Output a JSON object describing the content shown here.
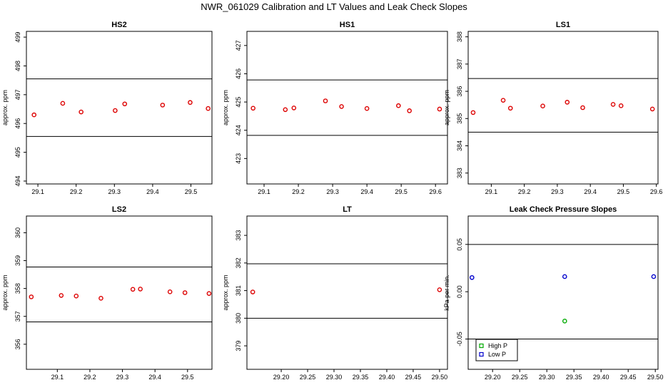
{
  "figure": {
    "title": "NWR_061029  Calibration and LT Values and Leak Check Slopes"
  },
  "chart_data": [
    {
      "id": "hs2",
      "type": "scatter",
      "title": "HS2",
      "ylabel": "approx. ppm",
      "xlim": [
        29.07,
        29.555
      ],
      "ylim": [
        493.9,
        499.2
      ],
      "xticks": [
        29.1,
        29.2,
        29.3,
        29.4,
        29.5
      ],
      "xtick_labels": [
        "29.1",
        "29.2",
        "29.3",
        "29.4",
        "29.5"
      ],
      "yticks": [
        494,
        495,
        496,
        497,
        498,
        499
      ],
      "ytick_labels": [
        "494",
        "495",
        "496",
        "497",
        "498",
        "499"
      ],
      "hlines": [
        495.55,
        497.55
      ],
      "series": [
        {
          "color": "#dd0000",
          "x": [
            29.09,
            29.165,
            29.213,
            29.302,
            29.327,
            29.426,
            29.498,
            29.545
          ],
          "y": [
            496.3,
            496.7,
            496.4,
            496.45,
            496.68,
            496.64,
            496.73,
            496.52
          ]
        }
      ]
    },
    {
      "id": "hs1",
      "type": "scatter",
      "title": "HS1",
      "ylabel": "approx. ppm",
      "xlim": [
        29.05,
        29.635
      ],
      "ylim": [
        422.1,
        427.5
      ],
      "xticks": [
        29.1,
        29.2,
        29.3,
        29.4,
        29.5,
        29.6
      ],
      "xtick_labels": [
        "29.1",
        "29.2",
        "29.3",
        "29.4",
        "29.5",
        "29.6"
      ],
      "yticks": [
        423,
        424,
        425,
        426,
        427
      ],
      "ytick_labels": [
        "423",
        "424",
        "425",
        "426",
        "427"
      ],
      "hlines": [
        423.82,
        425.78
      ],
      "series": [
        {
          "color": "#dd0000",
          "x": [
            29.068,
            29.162,
            29.187,
            29.279,
            29.326,
            29.4,
            29.492,
            29.524,
            29.612
          ],
          "y": [
            424.78,
            424.73,
            424.79,
            425.04,
            424.84,
            424.77,
            424.87,
            424.69,
            424.75
          ]
        }
      ]
    },
    {
      "id": "ls1",
      "type": "scatter",
      "title": "LS1",
      "ylabel": "approx. ppm",
      "xlim": [
        29.03,
        29.605
      ],
      "ylim": [
        382.6,
        388.2
      ],
      "xticks": [
        29.1,
        29.2,
        29.3,
        29.4,
        29.5,
        29.6
      ],
      "xtick_labels": [
        "29.1",
        "29.2",
        "29.3",
        "29.4",
        "29.5",
        "29.6"
      ],
      "yticks": [
        383,
        384,
        385,
        386,
        387,
        388
      ],
      "ytick_labels": [
        "383",
        "384",
        "385",
        "386",
        "387",
        "388"
      ],
      "hlines": [
        384.5,
        386.47
      ],
      "series": [
        {
          "color": "#dd0000",
          "x": [
            29.045,
            29.136,
            29.158,
            29.256,
            29.33,
            29.377,
            29.469,
            29.493,
            29.588
          ],
          "y": [
            385.22,
            385.67,
            385.38,
            385.46,
            385.6,
            385.4,
            385.52,
            385.47,
            385.35
          ]
        }
      ]
    },
    {
      "id": "ls2",
      "type": "scatter",
      "title": "LS2",
      "ylabel": "approx. ppm",
      "xlim": [
        29.005,
        29.575
      ],
      "ylim": [
        355.1,
        360.6
      ],
      "xticks": [
        29.1,
        29.2,
        29.3,
        29.4,
        29.5
      ],
      "xtick_labels": [
        "29.1",
        "29.2",
        "29.3",
        "29.4",
        "29.5"
      ],
      "yticks": [
        356,
        357,
        358,
        359,
        360
      ],
      "ytick_labels": [
        "356",
        "357",
        "358",
        "359",
        "360"
      ],
      "hlines": [
        356.8,
        358.77
      ],
      "series": [
        {
          "color": "#dd0000",
          "x": [
            29.02,
            29.112,
            29.158,
            29.234,
            29.332,
            29.355,
            29.446,
            29.492,
            29.566
          ],
          "y": [
            357.7,
            357.75,
            357.73,
            357.65,
            357.97,
            357.98,
            357.88,
            357.85,
            357.82
          ]
        }
      ]
    },
    {
      "id": "lt",
      "type": "scatter",
      "title": "LT",
      "ylabel": "approx. ppm",
      "xlim": [
        29.135,
        29.515
      ],
      "ylim": [
        378.15,
        383.7
      ],
      "xticks": [
        29.2,
        29.25,
        29.3,
        29.35,
        29.4,
        29.45,
        29.5
      ],
      "xtick_labels": [
        "29.20",
        "29.25",
        "29.30",
        "29.35",
        "29.40",
        "29.45",
        "29.50"
      ],
      "yticks": [
        379,
        380,
        381,
        382,
        383
      ],
      "ytick_labels": [
        "379",
        "380",
        "381",
        "382",
        "383"
      ],
      "hlines": [
        380.0,
        381.97
      ],
      "series": [
        {
          "color": "#dd0000",
          "x": [
            29.146,
            29.5
          ],
          "y": [
            380.95,
            381.03
          ]
        }
      ]
    },
    {
      "id": "leak",
      "type": "scatter",
      "title": "Leak Check Pressure Slopes",
      "ylabel": "kPa per min.",
      "xlim": [
        29.155,
        29.505
      ],
      "ylim": [
        -0.082,
        0.08
      ],
      "xticks": [
        29.2,
        29.25,
        29.3,
        29.35,
        29.4,
        29.45,
        29.5
      ],
      "xtick_labels": [
        "29.20",
        "29.25",
        "29.30",
        "29.35",
        "29.40",
        "29.45",
        "29.50"
      ],
      "yticks": [
        -0.05,
        0.0,
        0.05
      ],
      "ytick_labels": [
        "-0.05",
        "0.00",
        "0.05"
      ],
      "hlines": [
        -0.05,
        0.05
      ],
      "legend": {
        "placement": "bottom-left"
      },
      "series": [
        {
          "name": "High P",
          "color": "#00aa00",
          "x": [
            29.333
          ],
          "y": [
            -0.031
          ]
        },
        {
          "name": "Low P",
          "color": "#0000cc",
          "x": [
            29.162,
            29.333,
            29.497
          ],
          "y": [
            0.015,
            0.016,
            0.016
          ]
        }
      ]
    }
  ]
}
